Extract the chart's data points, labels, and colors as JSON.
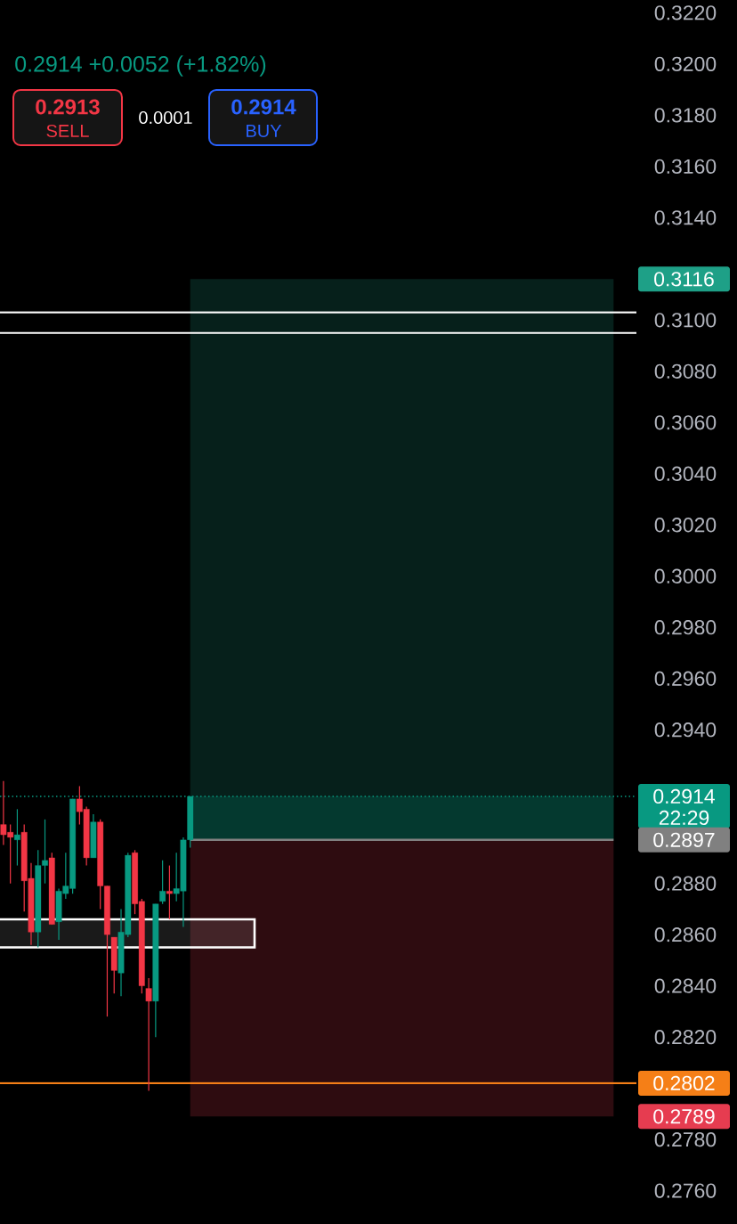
{
  "chart_data": {
    "type": "candlestick",
    "subtitle": "0.2914 +0.0052 (+1.82%)",
    "categories": [
      null,
      null,
      null,
      null,
      null,
      null,
      null,
      null,
      null,
      null,
      null,
      null,
      null,
      null,
      null,
      null,
      null,
      null,
      null,
      null,
      null,
      null,
      null,
      null,
      null,
      null,
      null,
      null,
      null,
      null,
      null,
      null,
      null,
      null,
      null,
      null,
      null,
      null,
      null,
      null,
      null,
      null,
      null,
      null,
      null,
      null,
      null,
      null,
      null,
      null,
      null,
      null,
      null,
      null,
      null,
      null,
      null,
      null,
      null,
      null,
      null,
      null,
      null,
      null,
      null,
      null,
      null,
      null,
      null,
      null,
      null,
      null,
      null,
      null,
      null,
      null,
      null,
      null,
      null,
      null,
      null,
      null,
      null,
      null,
      null,
      null,
      null,
      null,
      null,
      null,
      null,
      null
    ],
    "ohlc": [
      [
        0.2903,
        0.292,
        0.2895,
        0.2899
      ],
      [
        0.29,
        0.2903,
        0.288,
        0.2898
      ],
      [
        0.2897,
        0.2909,
        0.2887,
        0.2899
      ],
      [
        0.29,
        0.2903,
        0.2869,
        0.2881
      ],
      [
        0.2882,
        0.2888,
        0.2856,
        0.2861
      ],
      [
        0.2861,
        0.2893,
        0.2855,
        0.2887
      ],
      [
        0.2887,
        0.2905,
        0.288,
        0.2889
      ],
      [
        0.289,
        0.2892,
        0.2864,
        0.2864
      ],
      [
        0.2865,
        0.2878,
        0.2858,
        0.2877
      ],
      [
        0.2876,
        0.2892,
        0.2874,
        0.2879
      ],
      [
        0.2878,
        0.2913,
        0.2876,
        0.2913
      ],
      [
        0.2913,
        0.2918,
        0.2903,
        0.2908
      ],
      [
        0.2909,
        0.291,
        0.2887,
        0.289
      ],
      [
        0.289,
        0.2907,
        0.289,
        0.2904
      ],
      [
        0.2904,
        0.2905,
        0.287,
        0.2879
      ],
      [
        0.2879,
        0.2879,
        0.2828,
        0.286
      ],
      [
        0.2859,
        0.2859,
        0.2837,
        0.2846
      ],
      [
        0.2845,
        0.287,
        0.2836,
        0.2861
      ],
      [
        0.286,
        0.2892,
        0.2859,
        0.2891
      ],
      [
        0.2892,
        0.2893,
        0.2868,
        0.2872
      ],
      [
        0.2873,
        0.2874,
        0.2837,
        0.284
      ],
      [
        0.2839,
        0.2843,
        0.2799,
        0.2834
      ],
      [
        0.2834,
        0.2872,
        0.282,
        0.2872
      ],
      [
        0.2873,
        0.2889,
        0.2872,
        0.2877
      ],
      [
        0.2877,
        0.2887,
        0.2866,
        0.2876
      ],
      [
        0.2876,
        0.2892,
        0.2873,
        0.2878
      ],
      [
        0.2877,
        0.2898,
        0.2863,
        0.2897
      ],
      [
        0.2897,
        0.2914,
        0.2894,
        0.2914
      ],
      null,
      null,
      null,
      null,
      null,
      null,
      null,
      null,
      null,
      null,
      null,
      null,
      null,
      null,
      null,
      null,
      null,
      null,
      null,
      null,
      null,
      null,
      null,
      null,
      null,
      null,
      null,
      null,
      null,
      null,
      null,
      null,
      null,
      null,
      null,
      null,
      null,
      null,
      null,
      null,
      null,
      null,
      null,
      null,
      null,
      null,
      null,
      null,
      null,
      null,
      null,
      null,
      null,
      null,
      null,
      null,
      null,
      null,
      null,
      null,
      null,
      null,
      null,
      null
    ],
    "colors": [
      "#f23645",
      "#f23645",
      "#089981",
      "#f23645",
      "#f23645",
      "#089981",
      "#089981",
      "#f23645",
      "#089981",
      "#089981",
      "#089981",
      "#f23645",
      "#f23645",
      "#089981",
      "#f23645",
      "#f23645",
      "#f23645",
      "#089981",
      "#089981",
      "#f23645",
      "#f23645",
      "#f23645",
      "#089981",
      "#089981",
      "#f23645",
      "#089981",
      "#089981",
      "#089981",
      null,
      null,
      null,
      null,
      null,
      null,
      null,
      null,
      null,
      null,
      null,
      null,
      null,
      null,
      null,
      null,
      null,
      null,
      null,
      null,
      null,
      null,
      null,
      null,
      null,
      null,
      null,
      null,
      null,
      null,
      null,
      null,
      null,
      null,
      null,
      null,
      null,
      null,
      null,
      null,
      null,
      null,
      null,
      null,
      null,
      null,
      null,
      null,
      null,
      null,
      null,
      null,
      null,
      null,
      null,
      null,
      null,
      null,
      null,
      null,
      null,
      null,
      null,
      null
    ],
    "ylim": [
      0.2747,
      0.3225
    ],
    "yticks": [
      {
        "value": 0.276,
        "label": "0.2760"
      },
      {
        "value": 0.278,
        "label": "0.2780"
      },
      {
        "value": 0.282,
        "label": "0.2820"
      },
      {
        "value": 0.284,
        "label": "0.2840"
      },
      {
        "value": 0.286,
        "label": "0.2860"
      },
      {
        "value": 0.288,
        "label": "0.2880"
      },
      {
        "value": 0.294,
        "label": "0.2940"
      },
      {
        "value": 0.296,
        "label": "0.2960"
      },
      {
        "value": 0.298,
        "label": "0.2980"
      },
      {
        "value": 0.3,
        "label": "0.3000"
      },
      {
        "value": 0.302,
        "label": "0.3020"
      },
      {
        "value": 0.304,
        "label": "0.3040"
      },
      {
        "value": 0.306,
        "label": "0.3060"
      },
      {
        "value": 0.308,
        "label": "0.3080"
      },
      {
        "value": 0.31,
        "label": "0.3100"
      },
      {
        "value": 0.314,
        "label": "0.3140"
      },
      {
        "value": 0.316,
        "label": "0.3160"
      },
      {
        "value": 0.318,
        "label": "0.3180"
      },
      {
        "value": 0.32,
        "label": "0.3200"
      },
      {
        "value": 0.322,
        "label": "0.3220"
      }
    ],
    "ref_lines": [
      {
        "axis": "y",
        "value": 0.3103,
        "color": "#ffffff"
      },
      {
        "axis": "y",
        "value": 0.3095,
        "color": "#ffffff"
      },
      {
        "axis": "y",
        "value": 0.2914,
        "label": "0.2914",
        "color": "#089981",
        "line_style": "dotted"
      },
      {
        "axis": "y",
        "value": 0.2897,
        "label": "0.2897",
        "color": "#808080"
      },
      {
        "axis": "y",
        "value": 0.2802,
        "label": "0.2802",
        "color": "#f57f17"
      }
    ],
    "bands": [
      {
        "axis": "y",
        "from": 0.2897,
        "to": 0.3116,
        "label": "0.3116",
        "color": "#06201b"
      },
      {
        "axis": "y",
        "from": 0.2897,
        "to": 0.2789,
        "label": "0.2789",
        "color": "#2e0c10"
      },
      {
        "axis": "y",
        "from": 0.2897,
        "to": 0.2914,
        "color": "#04392f"
      },
      {
        "axis": "y",
        "from": 0.2855,
        "to": 0.2866,
        "color": "#ffffff"
      }
    ],
    "annotations": [
      "0.2913",
      "SELL",
      "0.0001",
      "0.2914",
      "BUY",
      "22:29"
    ]
  }
}
